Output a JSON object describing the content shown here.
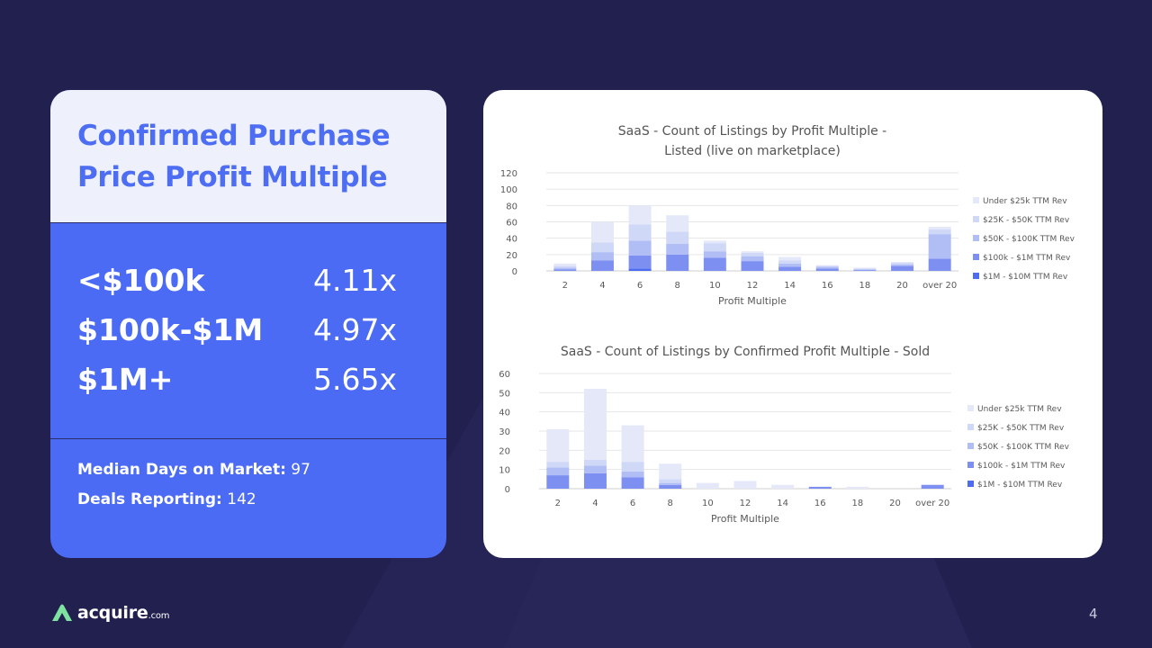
{
  "card": {
    "title_line1": "Confirmed Purchase",
    "title_line2": "Price Profit Multiple",
    "metrics": [
      {
        "label": "<$100k",
        "value": "4.11x"
      },
      {
        "label": "$100k-$1M",
        "value": "4.97x"
      },
      {
        "label": "$1M+",
        "value": "5.65x"
      }
    ],
    "median_days_label": "Median Days on Market:",
    "median_days_value": "97",
    "deals_label": "Deals Reporting:",
    "deals_value": "142"
  },
  "logo": {
    "name": "acquire",
    "suffix": ".com"
  },
  "page_number": "4",
  "colors": {
    "background": "#22204f",
    "accent_blue": "#4b6bf5",
    "title_blue": "#4d6df2",
    "series": [
      "#e4e8f8",
      "#d0d8f7",
      "#b1bdf5",
      "#7d90f2",
      "#4e6cf0"
    ]
  },
  "chart_data": [
    {
      "type": "bar",
      "stacked": true,
      "title": "SaaS - Count of Listings by Profit Multiple -",
      "subtitle": "Listed (live on marketplace)",
      "xlabel": "Profit Multiple",
      "ylabel": "",
      "ylim": [
        0,
        120
      ],
      "yticks": [
        "0",
        "20",
        "40",
        "60",
        "80",
        "100",
        "120"
      ],
      "categories": [
        "2",
        "4",
        "6",
        "8",
        "10",
        "12",
        "14",
        "16",
        "18",
        "20",
        "over 20"
      ],
      "legend_position": "right",
      "series": [
        {
          "name": "$1M - $10M TTM Rev",
          "values": [
            0,
            0,
            3,
            0,
            0,
            0,
            0,
            0,
            0,
            0,
            0
          ]
        },
        {
          "name": "$100k - $1M TTM Rev",
          "values": [
            2,
            13,
            16,
            20,
            16,
            12,
            5,
            3,
            1,
            6,
            15
          ]
        },
        {
          "name": "$50K - $100K TTM Rev",
          "values": [
            2,
            10,
            18,
            13,
            8,
            6,
            4,
            2,
            1,
            2,
            30
          ]
        },
        {
          "name": "$25K - $50K TTM Rev",
          "values": [
            2,
            12,
            20,
            15,
            10,
            4,
            4,
            1,
            1,
            2,
            6
          ]
        },
        {
          "name": "Under $25k TTM Rev",
          "values": [
            3,
            25,
            23,
            20,
            3,
            2,
            4,
            1,
            1,
            1,
            3
          ]
        }
      ]
    },
    {
      "type": "bar",
      "stacked": true,
      "title": "SaaS - Count of Listings by Confirmed Profit Multiple - Sold",
      "xlabel": "Profit Multiple",
      "ylabel": "",
      "ylim": [
        0,
        60
      ],
      "yticks": [
        "0",
        "10",
        "20",
        "30",
        "40",
        "50",
        "60"
      ],
      "categories": [
        "2",
        "4",
        "6",
        "8",
        "10",
        "12",
        "14",
        "16",
        "18",
        "20",
        "over 20"
      ],
      "legend_position": "right",
      "series": [
        {
          "name": "$1M - $10M TTM Rev",
          "values": [
            0,
            0,
            0,
            0,
            0,
            0,
            0,
            0,
            0,
            0,
            0
          ]
        },
        {
          "name": "$100k - $1M TTM Rev",
          "values": [
            7,
            8,
            6,
            2,
            0,
            0,
            0,
            1,
            0,
            0,
            2
          ]
        },
        {
          "name": "$50K - $100K TTM Rev",
          "values": [
            4,
            4,
            3,
            1,
            0,
            0,
            0,
            0,
            0,
            0,
            0
          ]
        },
        {
          "name": "$25K - $50K TTM Rev",
          "values": [
            3,
            3,
            5,
            2,
            0,
            0,
            0,
            0,
            0,
            0,
            0
          ]
        },
        {
          "name": "Under $25k TTM Rev",
          "values": [
            17,
            37,
            19,
            8,
            3,
            4,
            2,
            0,
            1,
            0,
            0
          ]
        }
      ]
    }
  ]
}
